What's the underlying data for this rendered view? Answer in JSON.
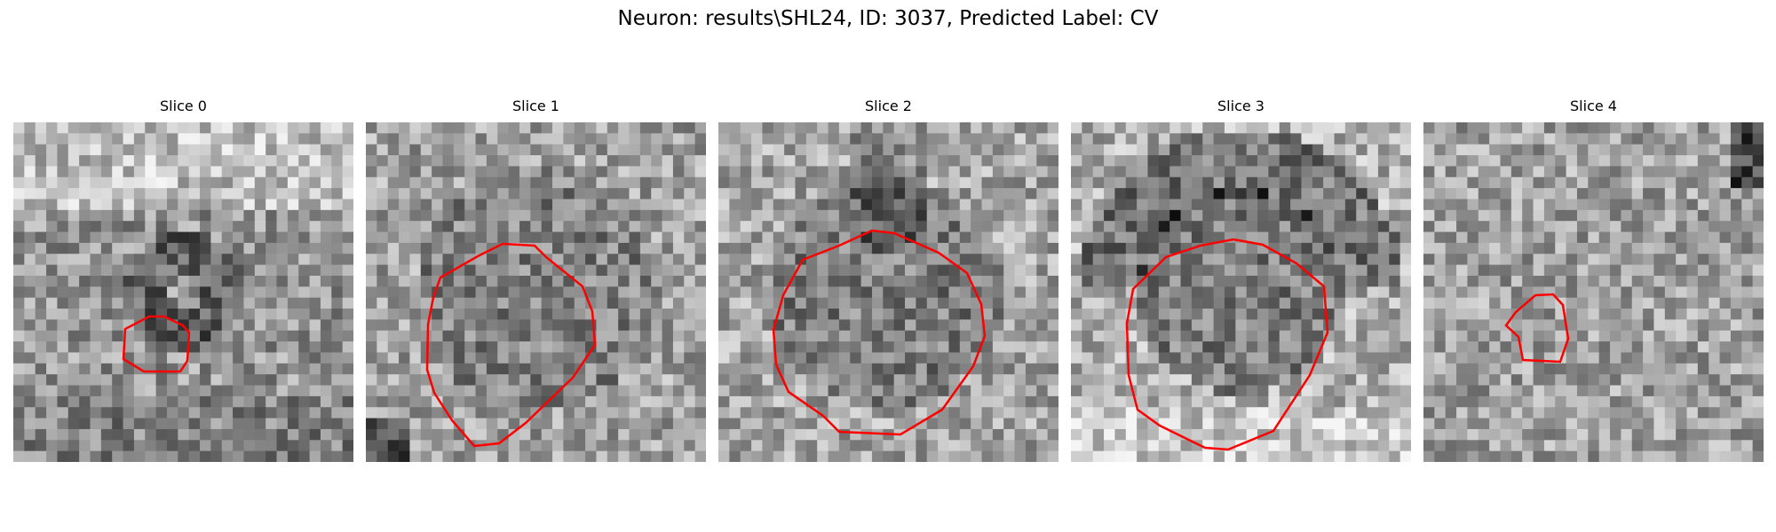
{
  "figure": {
    "title": "Neuron: results\\SHL24, ID: 3037, Predicted Label: CV"
  },
  "colors": {
    "contour": "#ff0000"
  },
  "panels": [
    {
      "title": "Slice 0",
      "image": "grayscale-microscopy-patch",
      "contour": "small-roi-contour"
    },
    {
      "title": "Slice 1",
      "image": "grayscale-microscopy-patch",
      "contour": "large-roi-contour"
    },
    {
      "title": "Slice 2",
      "image": "grayscale-microscopy-patch",
      "contour": "large-roi-contour"
    },
    {
      "title": "Slice 3",
      "image": "grayscale-microscopy-patch",
      "contour": "large-roi-contour"
    },
    {
      "title": "Slice 4",
      "image": "grayscale-microscopy-patch",
      "contour": "small-roi-contour"
    }
  ]
}
